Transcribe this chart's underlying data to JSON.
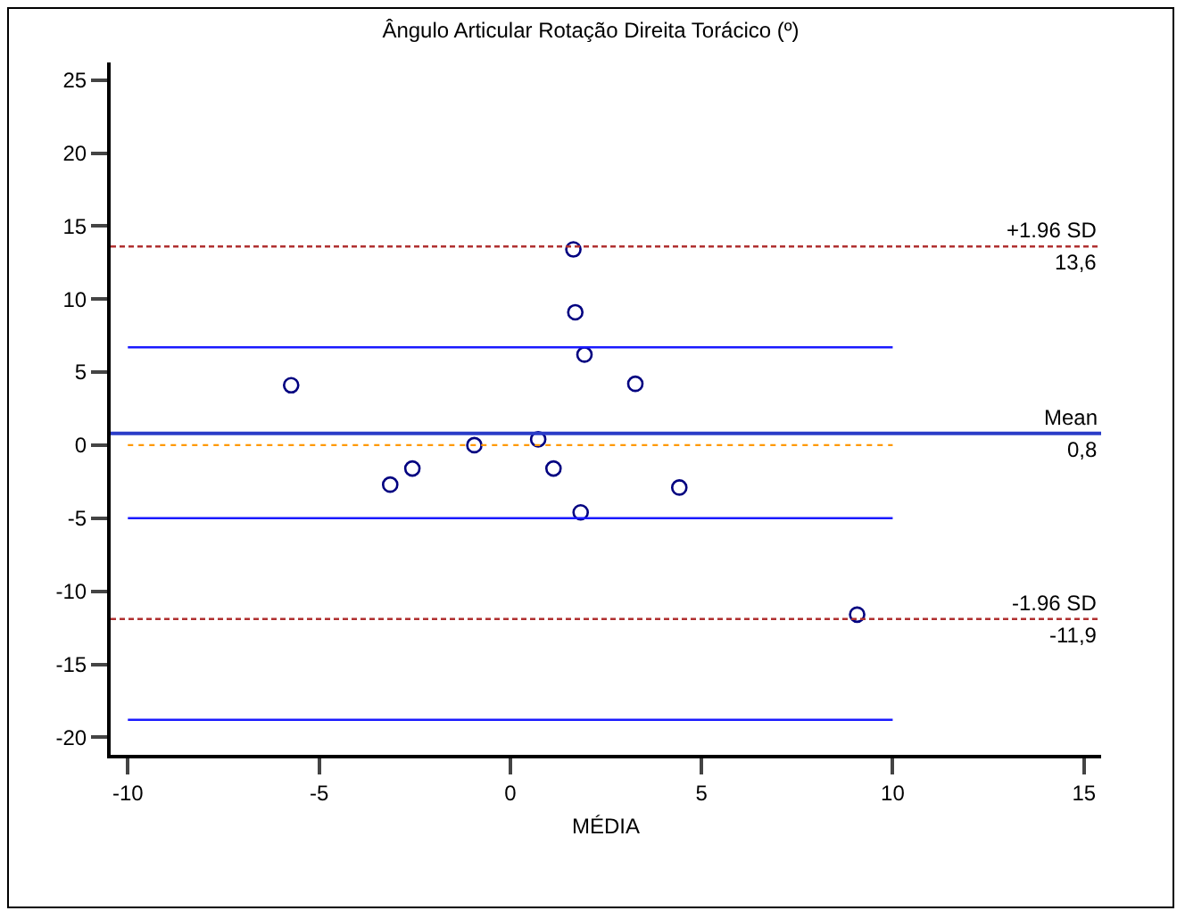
{
  "chart_data": {
    "type": "scatter",
    "title": "Ângulo Articular Rotação Direita Torácico (º)",
    "xlabel": "MÉDIA",
    "xlim": [
      -10.45,
      15.45
    ],
    "xticks": [
      -10,
      -5,
      0,
      5,
      10,
      15
    ],
    "ylim": [
      -21.2,
      26.2
    ],
    "yticks": [
      -20,
      -15,
      -10,
      -5,
      0,
      5,
      10,
      15,
      20,
      25
    ],
    "grid": false,
    "marker": "circle",
    "series": [
      {
        "color": "#000080",
        "x": [
          1.65,
          1.7,
          1.94,
          -5.73,
          3.27,
          -0.94,
          0.73,
          -3.14,
          -2.56,
          1.13,
          4.42,
          1.84,
          9.07
        ],
        "values": [
          13.4,
          9.1,
          6.2,
          4.1,
          4.2,
          0.0,
          0.4,
          -2.7,
          -1.6,
          -1.6,
          -2.9,
          -4.6,
          -11.6
        ]
      },
      {
        "type": "line",
        "color": "#ff9900",
        "line_style": "dotted",
        "marker": "none",
        "x": [
          -10,
          10
        ],
        "values": [
          0,
          0
        ]
      },
      {
        "type": "line",
        "color": "#1a1aff",
        "line_style": "solid",
        "marker": "none",
        "x": [
          -10,
          10
        ],
        "values": [
          6.7,
          6.7
        ]
      },
      {
        "type": "line",
        "color": "#1a1aff",
        "line_style": "solid",
        "marker": "none",
        "x": [
          -10,
          10
        ],
        "values": [
          -5.0,
          -5.0
        ]
      },
      {
        "type": "line",
        "color": "#1a1aff",
        "line_style": "solid",
        "marker": "none",
        "x": [
          -10,
          10
        ],
        "values": [
          -18.8,
          -18.8
        ]
      }
    ],
    "ref_lines": [
      {
        "axis": "y",
        "value": 13.6,
        "label": "+1.96 SD",
        "color": "#b03030",
        "line_style": "dashed"
      },
      {
        "axis": "y",
        "value": 0.8,
        "label": "Mean",
        "color": "#2a3cc8",
        "line_style": "solid"
      },
      {
        "axis": "y",
        "value": -11.9,
        "label": "-1.96 SD",
        "color": "#b03030",
        "line_style": "dashed"
      }
    ],
    "annotations": [
      {
        "text": "13,6",
        "y": 13.6
      },
      {
        "text": "0,8",
        "y": 0.8
      },
      {
        "text": "-11,9",
        "y": -11.9
      }
    ]
  }
}
